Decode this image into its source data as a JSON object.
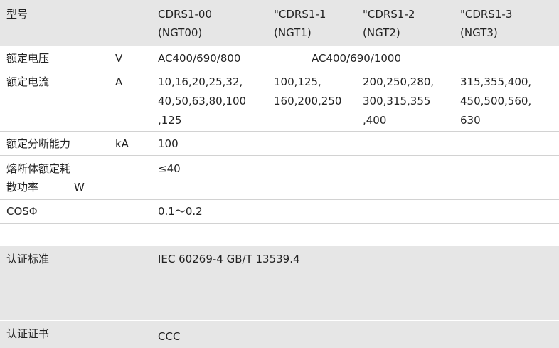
{
  "header": {
    "label": "型号",
    "models": [
      {
        "line1": "CDRS1-00",
        "line2": "(NGT00)"
      },
      {
        "line1": "\"CDRS1-1",
        "line2": "(NGT1)"
      },
      {
        "line1": "\"CDRS1-2",
        "line2": "(NGT2)"
      },
      {
        "line1": "\"CDRS1-3",
        "line2": "(NGT3)"
      }
    ]
  },
  "rows": {
    "voltage": {
      "label": "额定电压",
      "unit": "V",
      "val1": "AC400/690/800",
      "val2": "AC400/690/1000"
    },
    "current": {
      "label": "额定电流",
      "unit": "A",
      "col1": [
        "10,16,20,25,32,",
        "40,50,63,80,100",
        ",125"
      ],
      "col2": [
        "100,125,",
        "160,200,250"
      ],
      "col3": [
        "200,250,280,",
        "300,315,355",
        ",400"
      ],
      "col4": [
        "315,355,400,",
        "450,500,560,",
        "630"
      ]
    },
    "breaking": {
      "label": "额定分断能力",
      "unit": "kA",
      "value": "100"
    },
    "power": {
      "label1": "熔断体额定耗",
      "label2": "散功率",
      "unit": "W",
      "value": "≤40"
    },
    "cos": {
      "label": "COSΦ",
      "value": "0.1～0.2"
    },
    "cert_std": {
      "label": "认证标准",
      "value": "IEC 60269-4  GB/T 13539.4"
    },
    "cert": {
      "label": "认证证书",
      "value": "CCC"
    }
  }
}
